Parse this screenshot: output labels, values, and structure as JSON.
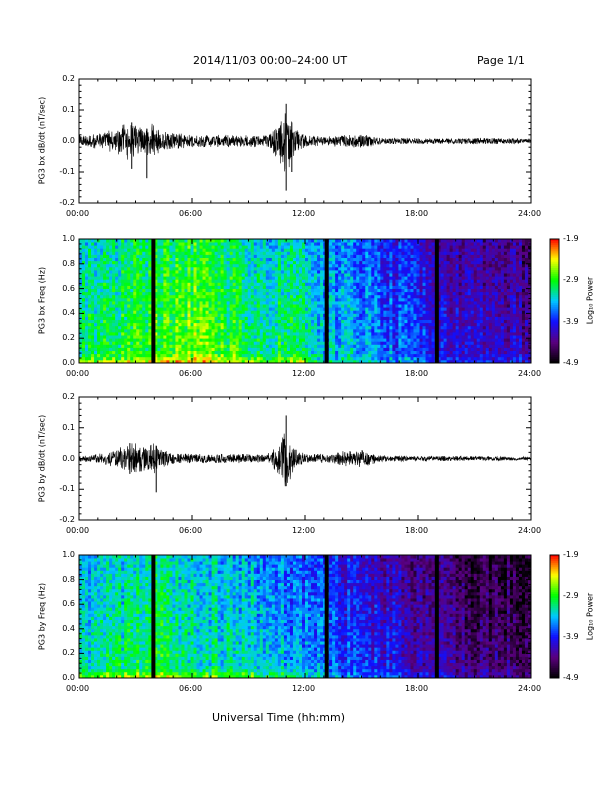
{
  "header": {
    "title": "2014/11/03   00:00–24:00 UT",
    "page": "Page 1/1"
  },
  "footer": {
    "xlabel": "Universal Time (hh:mm)"
  },
  "colors": {
    "colormap": [
      "#000000",
      "#5a007f",
      "#1010ff",
      "#00c8ff",
      "#00ff00",
      "#ffff00",
      "#ff0000"
    ],
    "gap_bars": "#000000",
    "trace": "#000000"
  },
  "chart_data": [
    {
      "type": "line",
      "name": "bx-timeseries",
      "ylabel": "PG3 bx dB/dt (nT/sec)",
      "xlim": [
        0,
        24
      ],
      "ylim": [
        -0.2,
        0.2
      ],
      "x_ticks": [
        "00:00",
        "06:00",
        "12:00",
        "18:00",
        "24:00"
      ],
      "y_ticks": [
        "0.2",
        "0.1",
        "0.0",
        "-0.1",
        "-0.2"
      ],
      "envelope": [
        [
          0.0,
          0.02
        ],
        [
          1.0,
          0.025
        ],
        [
          2.0,
          0.04
        ],
        [
          2.6,
          0.065
        ],
        [
          3.0,
          0.05
        ],
        [
          3.5,
          0.045
        ],
        [
          4.0,
          0.06
        ],
        [
          4.3,
          0.03
        ],
        [
          5.0,
          0.03
        ],
        [
          6.0,
          0.02
        ],
        [
          7.0,
          0.02
        ],
        [
          8.0,
          0.02
        ],
        [
          9.0,
          0.02
        ],
        [
          10.0,
          0.02
        ],
        [
          10.6,
          0.06
        ],
        [
          11.0,
          0.12
        ],
        [
          11.4,
          0.05
        ],
        [
          12.0,
          0.02
        ],
        [
          13.0,
          0.015
        ],
        [
          14.0,
          0.02
        ],
        [
          15.0,
          0.025
        ],
        [
          16.0,
          0.01
        ],
        [
          18.0,
          0.01
        ],
        [
          20.0,
          0.01
        ],
        [
          22.0,
          0.01
        ],
        [
          24.0,
          0.008
        ]
      ],
      "spikes": [
        [
          2.8,
          0.06,
          -0.09
        ],
        [
          3.6,
          0.04,
          -0.12
        ],
        [
          11.0,
          0.12,
          -0.16
        ],
        [
          11.3,
          0.06,
          -0.1
        ]
      ]
    },
    {
      "type": "heatmap",
      "name": "bx-spectrogram",
      "ylabel": "PG3 bx Freq (Hz)",
      "xlim": [
        0,
        24
      ],
      "ylim": [
        0,
        1
      ],
      "x_ticks": [
        "00:00",
        "06:00",
        "12:00",
        "18:00",
        "24:00"
      ],
      "y_ticks": [
        "1.0",
        "0.8",
        "0.6",
        "0.4",
        "0.2",
        "0.0"
      ],
      "colorbar_label": "Log₁₀ Power",
      "colorbar_ticks": [
        "-1.9",
        "-2.9",
        "-3.9",
        "-4.9"
      ],
      "clim": [
        -4.9,
        -1.9
      ],
      "gap_times": [
        3.95,
        13.15,
        19.0
      ],
      "level_profile": [
        [
          0,
          -3.1
        ],
        [
          2,
          -3.0
        ],
        [
          4,
          -2.8
        ],
        [
          6,
          -2.7
        ],
        [
          8,
          -2.9
        ],
        [
          10,
          -3.1
        ],
        [
          11,
          -3.0
        ],
        [
          12,
          -3.2
        ],
        [
          13,
          -3.3
        ],
        [
          15,
          -3.5
        ],
        [
          17,
          -3.7
        ],
        [
          19,
          -3.9
        ],
        [
          21,
          -4.1
        ],
        [
          24,
          -4.2
        ]
      ]
    },
    {
      "type": "line",
      "name": "by-timeseries",
      "ylabel": "PG3 by dB/dt (nT/sec)",
      "xlim": [
        0,
        24
      ],
      "ylim": [
        -0.2,
        0.2
      ],
      "x_ticks": [
        "00:00",
        "06:00",
        "12:00",
        "18:00",
        "24:00"
      ],
      "y_ticks": [
        "0.2",
        "0.1",
        "0.0",
        "-0.1",
        "-0.2"
      ],
      "envelope": [
        [
          0.0,
          0.01
        ],
        [
          1.0,
          0.015
        ],
        [
          2.0,
          0.03
        ],
        [
          2.5,
          0.05
        ],
        [
          3.0,
          0.05
        ],
        [
          3.5,
          0.04
        ],
        [
          4.0,
          0.05
        ],
        [
          4.3,
          0.03
        ],
        [
          5.0,
          0.02
        ],
        [
          6.0,
          0.015
        ],
        [
          8.0,
          0.015
        ],
        [
          10.0,
          0.015
        ],
        [
          10.6,
          0.05
        ],
        [
          11.0,
          0.1
        ],
        [
          11.4,
          0.04
        ],
        [
          12.0,
          0.015
        ],
        [
          13.5,
          0.015
        ],
        [
          14.0,
          0.025
        ],
        [
          15.0,
          0.03
        ],
        [
          16.0,
          0.01
        ],
        [
          20.0,
          0.008
        ],
        [
          24.0,
          0.006
        ]
      ],
      "spikes": [
        [
          2.7,
          0.05,
          -0.05
        ],
        [
          4.1,
          0.04,
          -0.11
        ],
        [
          11.0,
          0.14,
          -0.09
        ]
      ]
    },
    {
      "type": "heatmap",
      "name": "by-spectrogram",
      "ylabel": "PG3 by Freq (Hz)",
      "xlim": [
        0,
        24
      ],
      "ylim": [
        0,
        1
      ],
      "x_ticks": [
        "00:00",
        "06:00",
        "12:00",
        "18:00",
        "24:00"
      ],
      "y_ticks": [
        "1.0",
        "0.8",
        "0.6",
        "0.4",
        "0.2",
        "0.0"
      ],
      "colorbar_label": "Log₁₀ Power",
      "colorbar_ticks": [
        "-1.9",
        "-2.9",
        "-3.9",
        "-4.9"
      ],
      "clim": [
        -4.9,
        -1.9
      ],
      "gap_times": [
        3.95,
        13.15,
        19.0
      ],
      "level_profile": [
        [
          0,
          -3.2
        ],
        [
          2,
          -3.1
        ],
        [
          4,
          -3.0
        ],
        [
          6,
          -3.1
        ],
        [
          8,
          -3.2
        ],
        [
          10,
          -3.3
        ],
        [
          12,
          -3.5
        ],
        [
          13,
          -3.6
        ],
        [
          15,
          -3.8
        ],
        [
          17,
          -4.0
        ],
        [
          19,
          -4.2
        ],
        [
          21,
          -4.4
        ],
        [
          24,
          -4.5
        ]
      ]
    }
  ]
}
